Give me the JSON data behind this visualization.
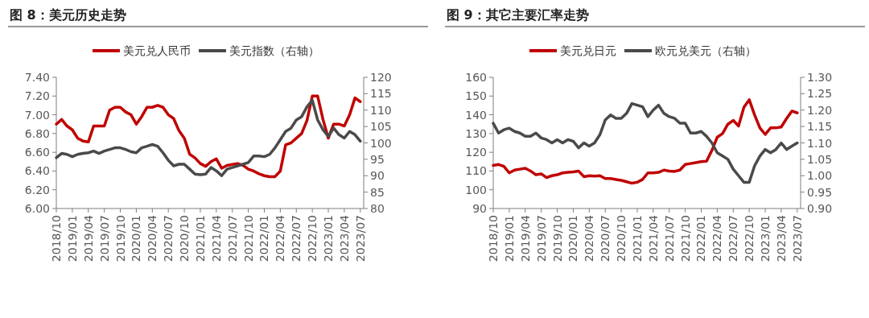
{
  "chart_data": [
    {
      "type": "line",
      "title": "图 8：美元历史走势",
      "legend": "top",
      "x": [
        "2018-10",
        "2018-11",
        "2018-12",
        "2019-01",
        "2019-02",
        "2019-03",
        "2019-04",
        "2019-05",
        "2019-06",
        "2019-07",
        "2019-08",
        "2019-09",
        "2019-10",
        "2019-11",
        "2019-12",
        "2020-01",
        "2020-02",
        "2020-03",
        "2020-04",
        "2020-05",
        "2020-06",
        "2020-07",
        "2020-08",
        "2020-09",
        "2020-10",
        "2020-11",
        "2020-12",
        "2021-01",
        "2021-02",
        "2021-03",
        "2021-04",
        "2021-05",
        "2021-06",
        "2021-07",
        "2021-08",
        "2021-09",
        "2021-10",
        "2021-11",
        "2021-12",
        "2022-01",
        "2022-02",
        "2022-03",
        "2022-04",
        "2022-05",
        "2022-06",
        "2022-07",
        "2022-08",
        "2022-09",
        "2022-10",
        "2022-11",
        "2022-12",
        "2023-01",
        "2023-02",
        "2023-03",
        "2023-04",
        "2023-05",
        "2023-06",
        "2023-07"
      ],
      "xlim": [
        "2018-10",
        "2023-07-20"
      ],
      "xticks": [
        {
          "value": "2018-10",
          "label": "2018/10"
        },
        {
          "value": "2019-01",
          "label": "2019/01"
        },
        {
          "value": "2019-04",
          "label": "2019/04"
        },
        {
          "value": "2019-07",
          "label": "2019/07"
        },
        {
          "value": "2019-10",
          "label": "2019/10"
        },
        {
          "value": "2020-01",
          "label": "2020/01"
        },
        {
          "value": "2020-04",
          "label": "2020/04"
        },
        {
          "value": "2020-07",
          "label": "2020/07"
        },
        {
          "value": "2020-10",
          "label": "2020/10"
        },
        {
          "value": "2021-01",
          "label": "2021/01"
        },
        {
          "value": "2021-04",
          "label": "2021/04"
        },
        {
          "value": "2021-07",
          "label": "2021/07"
        },
        {
          "value": "2021-10",
          "label": "2021/10"
        },
        {
          "value": "2022-01",
          "label": "2022/01"
        },
        {
          "value": "2022-04",
          "label": "2022/04"
        },
        {
          "value": "2022-07",
          "label": "2022/07"
        },
        {
          "value": "2022-10",
          "label": "2022/10"
        },
        {
          "value": "2023-01",
          "label": "2023/01"
        },
        {
          "value": "2023-04",
          "label": "2023/04"
        },
        {
          "value": "2023-07",
          "label": "2023/07"
        }
      ],
      "ylim": [
        6.0,
        7.4
      ],
      "yticks": [
        {
          "value": 6.0,
          "label": "6.00"
        },
        {
          "value": 6.2,
          "label": "6.20"
        },
        {
          "value": 6.4,
          "label": "6.40"
        },
        {
          "value": 6.6,
          "label": "6.60"
        },
        {
          "value": 6.8,
          "label": "6.80"
        },
        {
          "value": 7.0,
          "label": "7.00"
        },
        {
          "value": 7.2,
          "label": "7.20"
        },
        {
          "value": 7.4,
          "label": "7.40"
        }
      ],
      "y2lim": [
        80,
        120
      ],
      "y2ticks": [
        80,
        85,
        90,
        95,
        100,
        105,
        110,
        115,
        120
      ],
      "series": [
        {
          "name": "美元兑人民币",
          "color": "#c00000",
          "values": [
            6.9,
            6.95,
            6.88,
            6.84,
            6.75,
            6.72,
            6.71,
            6.88,
            6.88,
            6.88,
            7.05,
            7.08,
            7.08,
            7.03,
            7.0,
            6.9,
            6.98,
            7.08,
            7.08,
            7.1,
            7.08,
            7.0,
            6.96,
            6.83,
            6.75,
            6.58,
            6.54,
            6.48,
            6.45,
            6.5,
            6.53,
            6.43,
            6.46,
            6.47,
            6.48,
            6.46,
            6.42,
            6.4,
            6.37,
            6.35,
            6.34,
            6.34,
            6.4,
            6.68,
            6.7,
            6.75,
            6.8,
            6.94,
            7.2,
            7.2,
            6.95,
            6.75,
            6.9,
            6.9,
            6.88,
            7.0,
            7.18,
            7.14
          ]
        },
        {
          "name": "美元指数（右轴）",
          "color": "#4a4a4a",
          "axis": "y2",
          "values": [
            95.5,
            96.8,
            96.5,
            95.8,
            96.5,
            96.8,
            97,
            97.5,
            96.8,
            97.5,
            98,
            98.5,
            98.5,
            98,
            97.3,
            97,
            98.5,
            99,
            99.5,
            99,
            97,
            94.7,
            93,
            93.5,
            93.5,
            92,
            90.5,
            90.3,
            90.5,
            92.5,
            91.5,
            90,
            92,
            92.5,
            93,
            93.5,
            94,
            96,
            96,
            95.8,
            96.5,
            98.5,
            101,
            103.5,
            104.5,
            107,
            108,
            111,
            113,
            107,
            104,
            102,
            104.5,
            102.5,
            101.5,
            103.5,
            102.5,
            100.5
          ]
        }
      ]
    },
    {
      "type": "line",
      "title": "图 9：其它主要汇率走势",
      "legend": "top",
      "x": [
        "2018-10",
        "2018-11",
        "2018-12",
        "2019-01",
        "2019-02",
        "2019-03",
        "2019-04",
        "2019-05",
        "2019-06",
        "2019-07",
        "2019-08",
        "2019-09",
        "2019-10",
        "2019-11",
        "2019-12",
        "2020-01",
        "2020-02",
        "2020-03",
        "2020-04",
        "2020-05",
        "2020-06",
        "2020-07",
        "2020-08",
        "2020-09",
        "2020-10",
        "2020-11",
        "2020-12",
        "2021-01",
        "2021-02",
        "2021-03",
        "2021-04",
        "2021-05",
        "2021-06",
        "2021-07",
        "2021-08",
        "2021-09",
        "2021-10",
        "2021-11",
        "2021-12",
        "2022-01",
        "2022-02",
        "2022-03",
        "2022-04",
        "2022-05",
        "2022-06",
        "2022-07",
        "2022-08",
        "2022-09",
        "2022-10",
        "2022-11",
        "2022-12",
        "2023-01",
        "2023-02",
        "2023-03",
        "2023-04",
        "2023-05",
        "2023-06",
        "2023-07"
      ],
      "xlim": [
        "2018-10",
        "2023-07-20"
      ],
      "xticks": [
        {
          "value": "2018-10",
          "label": "2018/10"
        },
        {
          "value": "2019-01",
          "label": "2019/01"
        },
        {
          "value": "2019-04",
          "label": "2019/04"
        },
        {
          "value": "2019-07",
          "label": "2019/07"
        },
        {
          "value": "2019-10",
          "label": "2019/10"
        },
        {
          "value": "2020-01",
          "label": "2020/01"
        },
        {
          "value": "2020-04",
          "label": "2020/04"
        },
        {
          "value": "2020-07",
          "label": "2020/07"
        },
        {
          "value": "2020-10",
          "label": "2020/10"
        },
        {
          "value": "2021-01",
          "label": "2021/01"
        },
        {
          "value": "2021-04",
          "label": "2021/04"
        },
        {
          "value": "2021-07",
          "label": "2021/07"
        },
        {
          "value": "2021-10",
          "label": "2021/10"
        },
        {
          "value": "2022-01",
          "label": "2022/01"
        },
        {
          "value": "2022-04",
          "label": "2022/04"
        },
        {
          "value": "2022-07",
          "label": "2022/07"
        },
        {
          "value": "2022-10",
          "label": "2022/10"
        },
        {
          "value": "2023-01",
          "label": "2023/01"
        },
        {
          "value": "2023-04",
          "label": "2023/04"
        },
        {
          "value": "2023-07",
          "label": "2023/07"
        }
      ],
      "ylim": [
        90,
        160
      ],
      "yticks": [
        90,
        100,
        110,
        120,
        130,
        140,
        150,
        160
      ],
      "y2lim": [
        0.9,
        1.3
      ],
      "y2ticks": [
        {
          "value": 0.9,
          "label": "0.90"
        },
        {
          "value": 0.95,
          "label": "0.95"
        },
        {
          "value": 1.0,
          "label": "1.00"
        },
        {
          "value": 1.05,
          "label": "1.05"
        },
        {
          "value": 1.1,
          "label": "1.10"
        },
        {
          "value": 1.15,
          "label": "1.15"
        },
        {
          "value": 1.2,
          "label": "1.20"
        },
        {
          "value": 1.25,
          "label": "1.25"
        },
        {
          "value": 1.3,
          "label": "1.30"
        }
      ],
      "series": [
        {
          "name": "美元兑日元",
          "color": "#c00000",
          "values": [
            113,
            113.5,
            112.5,
            109,
            110.5,
            111,
            111.5,
            110,
            108,
            108.5,
            106.5,
            107.5,
            108,
            109,
            109.3,
            109.5,
            110,
            107,
            107.5,
            107.3,
            107.5,
            106,
            106,
            105.5,
            105,
            104.3,
            103.5,
            104,
            105.5,
            109,
            109,
            109.3,
            110.5,
            110,
            109.8,
            110.5,
            113.5,
            114,
            114.5,
            115,
            115.2,
            121,
            128,
            130,
            135,
            137,
            134,
            144,
            148,
            140,
            133,
            129.5,
            133,
            133,
            133.5,
            138,
            142,
            141
          ]
        },
        {
          "name": "欧元兑美元（右轴）",
          "color": "#4a4a4a",
          "axis": "y2",
          "values": [
            1.16,
            1.13,
            1.14,
            1.145,
            1.135,
            1.13,
            1.12,
            1.12,
            1.13,
            1.115,
            1.11,
            1.1,
            1.11,
            1.1,
            1.11,
            1.105,
            1.085,
            1.1,
            1.09,
            1.1,
            1.125,
            1.17,
            1.185,
            1.175,
            1.175,
            1.19,
            1.22,
            1.215,
            1.21,
            1.18,
            1.2,
            1.215,
            1.19,
            1.18,
            1.175,
            1.16,
            1.16,
            1.13,
            1.13,
            1.135,
            1.12,
            1.1,
            1.07,
            1.06,
            1.05,
            1.02,
            1.0,
            0.98,
            0.98,
            1.03,
            1.06,
            1.08,
            1.07,
            1.08,
            1.1,
            1.08,
            1.09,
            1.1
          ]
        }
      ]
    }
  ]
}
